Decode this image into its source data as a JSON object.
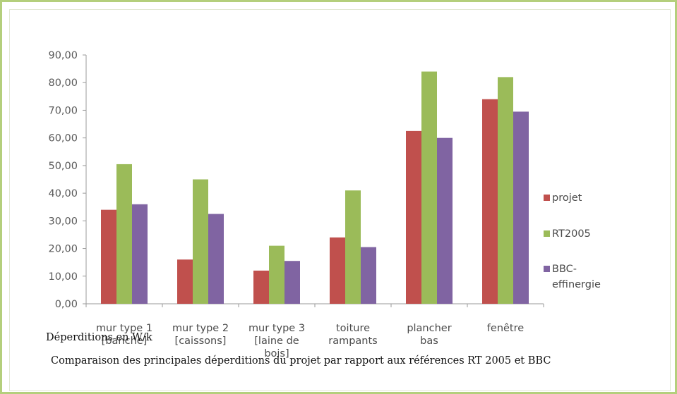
{
  "chart_data": {
    "type": "bar",
    "title": "",
    "xlabel": "",
    "ylabel": "",
    "ylim": [
      0,
      90
    ],
    "ytick_step": 10,
    "ytick_labels": [
      "0,00",
      "10,00",
      "20,00",
      "30,00",
      "40,00",
      "50,00",
      "60,00",
      "70,00",
      "80,00",
      "90,00"
    ],
    "grid": false,
    "legend_position": "right",
    "categories": [
      [
        "mur type 1",
        "[banche]"
      ],
      [
        "mur type 2",
        "[caissons]"
      ],
      [
        "mur type 3",
        "[laine de",
        "bois]"
      ],
      [
        "toiture",
        "rampants"
      ],
      [
        "plancher",
        "bas"
      ],
      [
        "fenêtre"
      ]
    ],
    "series": [
      {
        "name": "projet",
        "color": "#c0504d",
        "values": [
          34,
          16,
          12,
          24,
          62.5,
          74
        ]
      },
      {
        "name": "RT2005",
        "color": "#9bbb59",
        "values": [
          50.5,
          45,
          21,
          41,
          84,
          82
        ]
      },
      {
        "name": "BBC-effinergie",
        "name_lines": [
          "BBC-",
          "effinergie"
        ],
        "color": "#8064a2",
        "values": [
          36,
          32.5,
          15.5,
          20.5,
          60,
          69.5
        ]
      }
    ]
  },
  "overlay": {
    "unit_label": "Déperditions en W/k",
    "caption": "Comparaison des principales déperditions du projet par rapport aux références RT 2005 et BBC"
  }
}
